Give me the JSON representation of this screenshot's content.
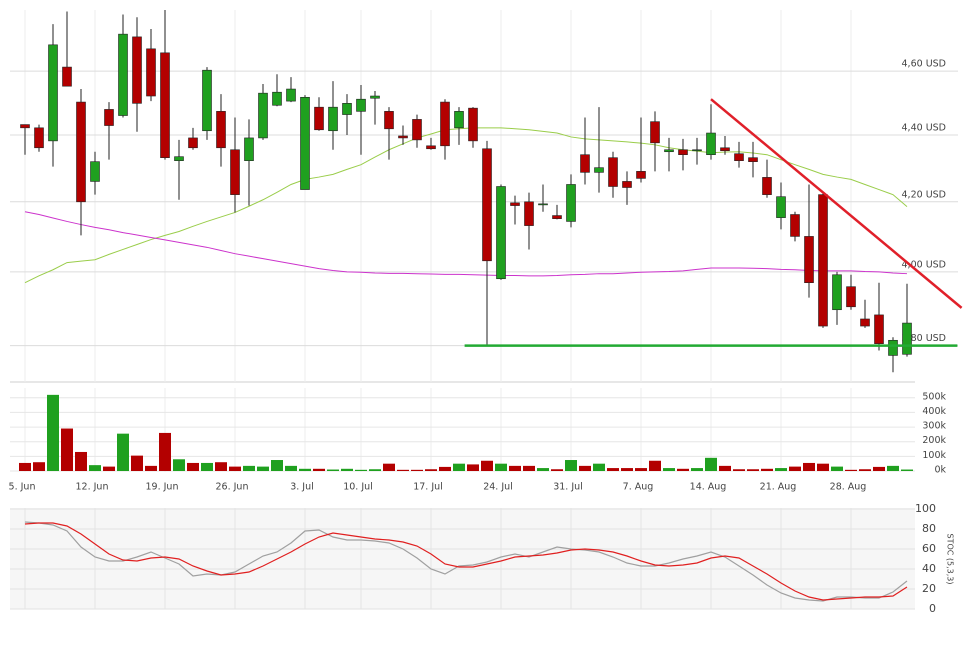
{
  "chart_data": [
    {
      "type": "candlestick",
      "log": true,
      "xgrid": true,
      "up_color": "#1fa01f",
      "down_color": "#b30000",
      "categories": [
        "5. Jun",
        null,
        null,
        null,
        null,
        "12. Jun",
        null,
        null,
        null,
        null,
        "19. Jun",
        null,
        null,
        null,
        null,
        "26. Jun",
        null,
        null,
        null,
        null,
        "3. Jul",
        null,
        null,
        null,
        "10. Jul",
        null,
        null,
        null,
        null,
        "17. Jul",
        null,
        null,
        null,
        null,
        "24. Jul",
        null,
        null,
        null,
        null,
        "31. Jul",
        null,
        null,
        null,
        null,
        "7. Aug",
        null,
        null,
        null,
        null,
        "14. Aug",
        null,
        null,
        null,
        null,
        "21. Aug",
        null,
        null,
        null,
        null,
        "28. Aug",
        null,
        null,
        null,
        null
      ],
      "open": [
        4.432,
        4.422,
        4.382,
        4.613,
        4.502,
        4.26,
        4.479,
        4.46,
        4.711,
        4.672,
        4.659,
        4.322,
        4.391,
        4.413,
        4.473,
        4.355,
        4.322,
        4.391,
        4.492,
        4.505,
        4.236,
        4.486,
        4.413,
        4.463,
        4.473,
        4.514,
        4.473,
        4.397,
        4.448,
        4.367,
        4.502,
        4.422,
        4.483,
        4.358,
        3.981,
        4.197,
        4.2,
        4.191,
        4.16,
        4.143,
        4.34,
        4.287,
        4.331,
        4.26,
        4.29,
        4.441,
        4.349,
        4.355,
        4.352,
        4.34,
        4.361,
        4.343,
        4.331,
        4.272,
        4.154,
        4.163,
        4.1,
        4.221,
        3.896,
        3.959,
        3.871,
        3.882,
        3.774,
        3.777
      ],
      "high": [
        4.432,
        4.432,
        4.753,
        4.795,
        4.543,
        4.349,
        4.502,
        4.785,
        4.776,
        4.737,
        4.8,
        4.385,
        4.422,
        4.613,
        4.527,
        4.454,
        4.448,
        4.559,
        4.59,
        4.581,
        4.524,
        4.517,
        4.568,
        4.527,
        4.556,
        4.537,
        4.486,
        4.429,
        4.463,
        4.391,
        4.511,
        4.486,
        4.486,
        4.382,
        4.251,
        4.218,
        4.227,
        4.251,
        4.191,
        4.281,
        4.454,
        4.486,
        4.349,
        4.29,
        4.454,
        4.473,
        4.391,
        4.388,
        4.391,
        4.495,
        4.397,
        4.379,
        4.379,
        4.325,
        4.257,
        4.171,
        4.251,
        4.227,
        4.0,
        3.992,
        3.923,
        3.97,
        3.822,
        3.967
      ],
      "low": [
        4.34,
        4.349,
        4.304,
        4.552,
        4.103,
        4.221,
        4.325,
        4.454,
        4.41,
        4.505,
        4.325,
        4.206,
        4.355,
        4.385,
        4.304,
        4.169,
        4.189,
        4.385,
        4.489,
        4.502,
        4.236,
        4.413,
        4.355,
        4.4,
        4.34,
        4.432,
        4.325,
        4.37,
        4.361,
        4.355,
        4.325,
        4.37,
        4.361,
        3.8,
        3.978,
        4.134,
        4.063,
        4.171,
        4.149,
        4.126,
        4.251,
        4.227,
        4.212,
        4.191,
        4.257,
        4.29,
        4.29,
        4.293,
        4.31,
        4.325,
        4.34,
        4.301,
        4.272,
        4.212,
        4.12,
        4.086,
        3.929,
        3.847,
        3.855,
        3.896,
        3.847,
        3.787,
        3.73,
        3.771
      ],
      "close": [
        4.422,
        4.361,
        4.685,
        4.552,
        4.2,
        4.319,
        4.429,
        4.72,
        4.498,
        4.521,
        4.331,
        4.334,
        4.361,
        4.603,
        4.361,
        4.221,
        4.391,
        4.53,
        4.533,
        4.543,
        4.517,
        4.416,
        4.486,
        4.498,
        4.511,
        4.521,
        4.419,
        4.391,
        4.385,
        4.358,
        4.367,
        4.473,
        4.382,
        4.031,
        4.245,
        4.189,
        4.131,
        4.194,
        4.151,
        4.251,
        4.287,
        4.301,
        4.245,
        4.242,
        4.269,
        4.376,
        4.355,
        4.34,
        4.355,
        4.406,
        4.352,
        4.322,
        4.319,
        4.221,
        4.215,
        4.1,
        3.97,
        3.852,
        3.992,
        3.904,
        3.852,
        3.805,
        3.814,
        3.86
      ],
      "lines": [
        {
          "color": "#9acd4a",
          "values": [
            3.97,
            3.989,
            4.006,
            4.026,
            4.03,
            4.034,
            4.049,
            4.063,
            4.077,
            4.091,
            4.103,
            4.114,
            4.129,
            4.143,
            4.156,
            4.169,
            4.187,
            4.206,
            4.228,
            4.251,
            4.266,
            4.273,
            4.281,
            4.296,
            4.31,
            4.333,
            4.355,
            4.373,
            4.391,
            4.403,
            4.416,
            4.419,
            4.422,
            4.422,
            4.422,
            4.419,
            4.416,
            4.411,
            4.406,
            4.394,
            4.388,
            4.385,
            4.382,
            4.379,
            4.375,
            4.37,
            4.361,
            4.355,
            4.351,
            4.346,
            4.348,
            4.349,
            4.345,
            4.34,
            4.325,
            4.31,
            4.296,
            4.281,
            4.273,
            4.266,
            4.251,
            4.236,
            4.221,
            4.186
          ]
        },
        {
          "color": "#cc33cc",
          "values": [
            4.171,
            4.163,
            4.153,
            4.143,
            4.134,
            4.126,
            4.119,
            4.111,
            4.104,
            4.097,
            4.09,
            4.083,
            4.076,
            4.069,
            4.06,
            4.051,
            4.044,
            4.037,
            4.03,
            4.023,
            4.016,
            4.009,
            4.004,
            4.0,
            3.999,
            3.997,
            3.996,
            3.996,
            3.995,
            3.994,
            3.993,
            3.993,
            3.992,
            3.991,
            3.99,
            3.99,
            3.989,
            3.989,
            3.99,
            3.992,
            3.993,
            3.995,
            3.995,
            3.997,
            3.999,
            4.0,
            4.001,
            4.003,
            4.007,
            4.011,
            4.011,
            4.011,
            4.01,
            4.009,
            4.007,
            4.006,
            4.004,
            4.003,
            4.003,
            4.003,
            4.001,
            4.0,
            3.997,
            3.995
          ]
        }
      ],
      "trendlines": [
        {
          "color": "#e0202a",
          "points": [
            [
              49,
              4.511
            ],
            [
              66.9,
              3.901
            ]
          ]
        },
        {
          "color": "#22aa33",
          "points": [
            [
              31.4,
              3.8
            ],
            [
              66.6,
              3.8
            ]
          ]
        }
      ],
      "ylim": [
        3.71,
        4.8
      ],
      "yticks": [
        {
          "value": 4.6,
          "label": "4,60 USD"
        },
        {
          "value": 4.4,
          "label": "4,40 USD"
        },
        {
          "value": 4.2,
          "label": "4,20 USD"
        },
        {
          "value": 4.0,
          "label": "4,00 USD"
        },
        {
          "value": 3.8,
          "label": "3,80 USD"
        }
      ]
    },
    {
      "type": "bar",
      "values": [
        55000,
        60000,
        520000,
        290000,
        130000,
        40000,
        30000,
        255000,
        105000,
        35000,
        260000,
        80000,
        55000,
        55000,
        60000,
        30000,
        35000,
        30000,
        75000,
        35000,
        15000,
        15000,
        10000,
        15000,
        8000,
        12000,
        50000,
        8000,
        8000,
        12000,
        28000,
        50000,
        45000,
        70000,
        50000,
        35000,
        35000,
        20000,
        12000,
        75000,
        35000,
        50000,
        20000,
        20000,
        20000,
        70000,
        20000,
        15000,
        20000,
        90000,
        35000,
        12000,
        12000,
        15000,
        20000,
        30000,
        55000,
        50000,
        30000,
        8000,
        12000,
        28000,
        35000,
        10000
      ],
      "ylim": [
        0,
        560000
      ],
      "yticks": [
        {
          "value": 500000,
          "label": "500k"
        },
        {
          "value": 400000,
          "label": "400k"
        },
        {
          "value": 300000,
          "label": "300k"
        },
        {
          "value": 200000,
          "label": "200k"
        },
        {
          "value": 100000,
          "label": "100k"
        },
        {
          "value": 0,
          "label": "0k"
        }
      ]
    },
    {
      "type": "line",
      "ylabel": "STOC (5,3,3)",
      "series": [
        {
          "color": "#a0a0a0",
          "values": [
            87,
            86,
            84,
            78,
            62,
            52,
            48,
            48,
            52,
            57,
            51,
            45,
            33,
            35,
            34,
            37,
            45,
            53,
            57,
            66,
            78,
            79,
            72,
            69,
            69,
            68,
            66,
            60,
            51,
            40,
            35,
            43,
            44,
            47,
            52,
            55,
            52,
            57,
            62,
            60,
            59,
            57,
            52,
            46,
            43,
            43,
            46,
            50,
            53,
            57,
            52,
            43,
            34,
            24,
            16,
            11,
            9,
            8,
            12,
            12,
            11,
            11,
            17,
            28
          ]
        },
        {
          "color": "#e02020",
          "values": [
            85,
            86,
            86,
            83,
            75,
            65,
            55,
            49,
            48,
            51,
            52,
            50,
            43,
            38,
            34,
            35,
            37,
            43,
            50,
            57,
            65,
            72,
            76,
            74,
            72,
            70,
            69,
            67,
            63,
            55,
            45,
            42,
            42,
            45,
            48,
            52,
            53,
            54,
            56,
            59,
            60,
            59,
            57,
            53,
            48,
            44,
            43,
            44,
            46,
            51,
            53,
            51,
            43,
            35,
            26,
            18,
            12,
            9,
            10,
            11,
            12,
            12,
            13,
            22
          ]
        }
      ],
      "ylim": [
        0,
        100
      ],
      "yticks": [
        100,
        80,
        60,
        40,
        20,
        0
      ]
    }
  ]
}
